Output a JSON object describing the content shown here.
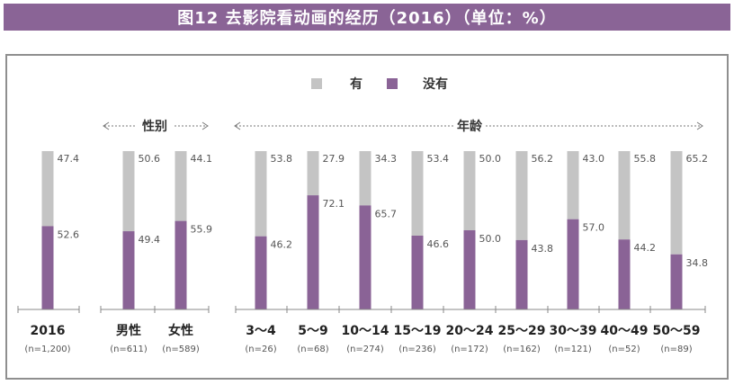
{
  "title": "图12 去影院看动画的经历（2016）（单位：%）",
  "chart_data": {
    "type": "bar",
    "stacked": true,
    "ylim": [
      0,
      100
    ],
    "grid": false,
    "legend_placement": "top-center",
    "colors": {
      "yes": "#c4c4c4",
      "no": "#8a6396"
    },
    "legend": [
      {
        "key": "yes",
        "label": "有"
      },
      {
        "key": "no",
        "label": "没有"
      }
    ],
    "group_labels": {
      "gender": "性别",
      "age": "年龄"
    },
    "categories": [
      "2016",
      "男性",
      "女性",
      "3～4",
      "5～9",
      "10～14",
      "15～19",
      "20～24",
      "25～29",
      "30～39",
      "40～49",
      "50～59"
    ],
    "sample_sizes": [
      "(n=1,200)",
      "(n=611)",
      "(n=589)",
      "(n=26)",
      "(n=68)",
      "(n=274)",
      "(n=236)",
      "(n=172)",
      "(n=162)",
      "(n=121)",
      "(n=52)",
      "(n=89)"
    ],
    "series": [
      {
        "key": "no",
        "name": "没有",
        "values": [
          52.6,
          49.4,
          55.9,
          46.2,
          72.1,
          65.7,
          46.6,
          50.0,
          43.8,
          57.0,
          44.2,
          34.8
        ]
      },
      {
        "key": "yes",
        "name": "有",
        "values": [
          47.4,
          50.6,
          44.1,
          53.8,
          27.9,
          34.3,
          53.4,
          50.0,
          56.2,
          43.0,
          55.8,
          65.2
        ]
      }
    ],
    "value_labels": {
      "no": [
        "52.6",
        "49.4",
        "55.9",
        "46.2",
        "72.1",
        "65.7",
        "46.6",
        "50.0",
        "43.8",
        "57.0",
        "44.2",
        "34.8"
      ],
      "yes": [
        "47.4",
        "50.6",
        "44.1",
        "53.8",
        "27.9",
        "34.3",
        "53.4",
        "50.0",
        "56.2",
        "43.0",
        "55.8",
        "65.2"
      ]
    }
  }
}
